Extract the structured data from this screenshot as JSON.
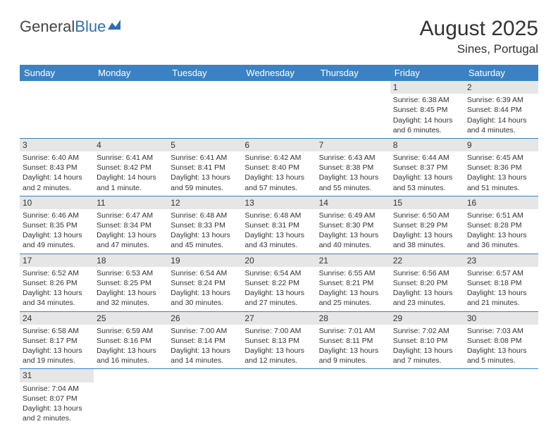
{
  "logo": {
    "text1": "General",
    "text2": "Blue"
  },
  "title": "August 2025",
  "location": "Sines, Portugal",
  "colors": {
    "header_bg": "#3b82c4",
    "header_fg": "#ffffff",
    "daynum_bg": "#e6e6e6",
    "rule": "#3b82c4",
    "text": "#333333",
    "logo_gray": "#444444",
    "logo_blue": "#2f6fb0",
    "background": "#ffffff"
  },
  "dow": [
    "Sunday",
    "Monday",
    "Tuesday",
    "Wednesday",
    "Thursday",
    "Friday",
    "Saturday"
  ],
  "weeks": [
    [
      null,
      null,
      null,
      null,
      null,
      {
        "n": "1",
        "sunrise": "6:38 AM",
        "sunset": "8:45 PM",
        "daylight": "14 hours and 6 minutes."
      },
      {
        "n": "2",
        "sunrise": "6:39 AM",
        "sunset": "8:44 PM",
        "daylight": "14 hours and 4 minutes."
      }
    ],
    [
      {
        "n": "3",
        "sunrise": "6:40 AM",
        "sunset": "8:43 PM",
        "daylight": "14 hours and 2 minutes."
      },
      {
        "n": "4",
        "sunrise": "6:41 AM",
        "sunset": "8:42 PM",
        "daylight": "14 hours and 1 minute."
      },
      {
        "n": "5",
        "sunrise": "6:41 AM",
        "sunset": "8:41 PM",
        "daylight": "13 hours and 59 minutes."
      },
      {
        "n": "6",
        "sunrise": "6:42 AM",
        "sunset": "8:40 PM",
        "daylight": "13 hours and 57 minutes."
      },
      {
        "n": "7",
        "sunrise": "6:43 AM",
        "sunset": "8:38 PM",
        "daylight": "13 hours and 55 minutes."
      },
      {
        "n": "8",
        "sunrise": "6:44 AM",
        "sunset": "8:37 PM",
        "daylight": "13 hours and 53 minutes."
      },
      {
        "n": "9",
        "sunrise": "6:45 AM",
        "sunset": "8:36 PM",
        "daylight": "13 hours and 51 minutes."
      }
    ],
    [
      {
        "n": "10",
        "sunrise": "6:46 AM",
        "sunset": "8:35 PM",
        "daylight": "13 hours and 49 minutes."
      },
      {
        "n": "11",
        "sunrise": "6:47 AM",
        "sunset": "8:34 PM",
        "daylight": "13 hours and 47 minutes."
      },
      {
        "n": "12",
        "sunrise": "6:48 AM",
        "sunset": "8:33 PM",
        "daylight": "13 hours and 45 minutes."
      },
      {
        "n": "13",
        "sunrise": "6:48 AM",
        "sunset": "8:31 PM",
        "daylight": "13 hours and 43 minutes."
      },
      {
        "n": "14",
        "sunrise": "6:49 AM",
        "sunset": "8:30 PM",
        "daylight": "13 hours and 40 minutes."
      },
      {
        "n": "15",
        "sunrise": "6:50 AM",
        "sunset": "8:29 PM",
        "daylight": "13 hours and 38 minutes."
      },
      {
        "n": "16",
        "sunrise": "6:51 AM",
        "sunset": "8:28 PM",
        "daylight": "13 hours and 36 minutes."
      }
    ],
    [
      {
        "n": "17",
        "sunrise": "6:52 AM",
        "sunset": "8:26 PM",
        "daylight": "13 hours and 34 minutes."
      },
      {
        "n": "18",
        "sunrise": "6:53 AM",
        "sunset": "8:25 PM",
        "daylight": "13 hours and 32 minutes."
      },
      {
        "n": "19",
        "sunrise": "6:54 AM",
        "sunset": "8:24 PM",
        "daylight": "13 hours and 30 minutes."
      },
      {
        "n": "20",
        "sunrise": "6:54 AM",
        "sunset": "8:22 PM",
        "daylight": "13 hours and 27 minutes."
      },
      {
        "n": "21",
        "sunrise": "6:55 AM",
        "sunset": "8:21 PM",
        "daylight": "13 hours and 25 minutes."
      },
      {
        "n": "22",
        "sunrise": "6:56 AM",
        "sunset": "8:20 PM",
        "daylight": "13 hours and 23 minutes."
      },
      {
        "n": "23",
        "sunrise": "6:57 AM",
        "sunset": "8:18 PM",
        "daylight": "13 hours and 21 minutes."
      }
    ],
    [
      {
        "n": "24",
        "sunrise": "6:58 AM",
        "sunset": "8:17 PM",
        "daylight": "13 hours and 19 minutes."
      },
      {
        "n": "25",
        "sunrise": "6:59 AM",
        "sunset": "8:16 PM",
        "daylight": "13 hours and 16 minutes."
      },
      {
        "n": "26",
        "sunrise": "7:00 AM",
        "sunset": "8:14 PM",
        "daylight": "13 hours and 14 minutes."
      },
      {
        "n": "27",
        "sunrise": "7:00 AM",
        "sunset": "8:13 PM",
        "daylight": "13 hours and 12 minutes."
      },
      {
        "n": "28",
        "sunrise": "7:01 AM",
        "sunset": "8:11 PM",
        "daylight": "13 hours and 9 minutes."
      },
      {
        "n": "29",
        "sunrise": "7:02 AM",
        "sunset": "8:10 PM",
        "daylight": "13 hours and 7 minutes."
      },
      {
        "n": "30",
        "sunrise": "7:03 AM",
        "sunset": "8:08 PM",
        "daylight": "13 hours and 5 minutes."
      }
    ],
    [
      {
        "n": "31",
        "sunrise": "7:04 AM",
        "sunset": "8:07 PM",
        "daylight": "13 hours and 2 minutes."
      },
      null,
      null,
      null,
      null,
      null,
      null
    ]
  ],
  "labels": {
    "sunrise": "Sunrise: ",
    "sunset": "Sunset: ",
    "daylight": "Daylight: "
  }
}
